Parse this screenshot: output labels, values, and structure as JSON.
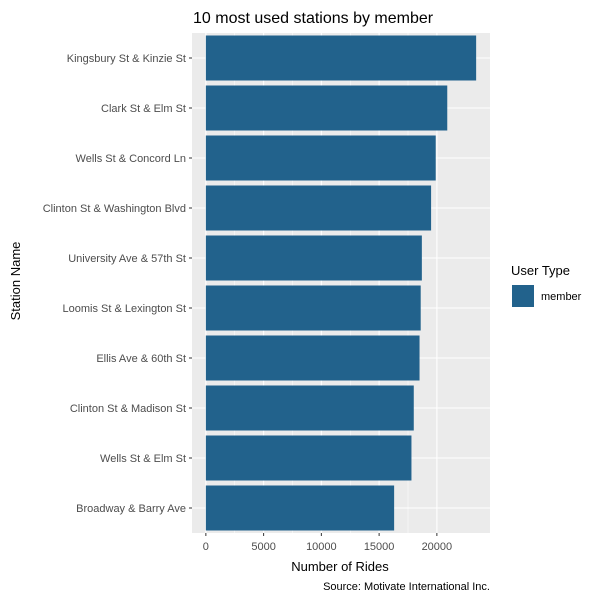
{
  "chart_data": {
    "type": "bar",
    "orientation": "horizontal",
    "title": "10 most used stations by member",
    "xlabel": "Number of Rides",
    "ylabel": "Station Name",
    "caption": "Source: Motivate International Inc.",
    "categories": [
      "Kingsbury St & Kinzie St",
      "Clark St & Elm St",
      "Wells St & Concord Ln",
      "Clinton St & Washington Blvd",
      "University Ave & 57th St",
      "Loomis St & Lexington St",
      "Ellis Ave & 60th St",
      "Clinton St & Madison St",
      "Wells St & Elm St",
      "Broadway & Barry Ave"
    ],
    "series": [
      {
        "name": "member",
        "color": "#22628c",
        "values": [
          23400,
          20900,
          19900,
          19500,
          18700,
          18600,
          18500,
          18000,
          17800,
          16300
        ]
      }
    ],
    "xlim": [
      -1200,
      24600
    ],
    "xticks": [
      0,
      5000,
      10000,
      15000,
      20000
    ],
    "xtick_labels": [
      "0",
      "5000",
      "10000",
      "15000",
      "20000"
    ],
    "grid": true,
    "panel_background": "#ebebeb",
    "grid_color": "#ffffff",
    "legend": {
      "title": "User Type",
      "placement": "right",
      "entries": [
        "member"
      ]
    }
  }
}
